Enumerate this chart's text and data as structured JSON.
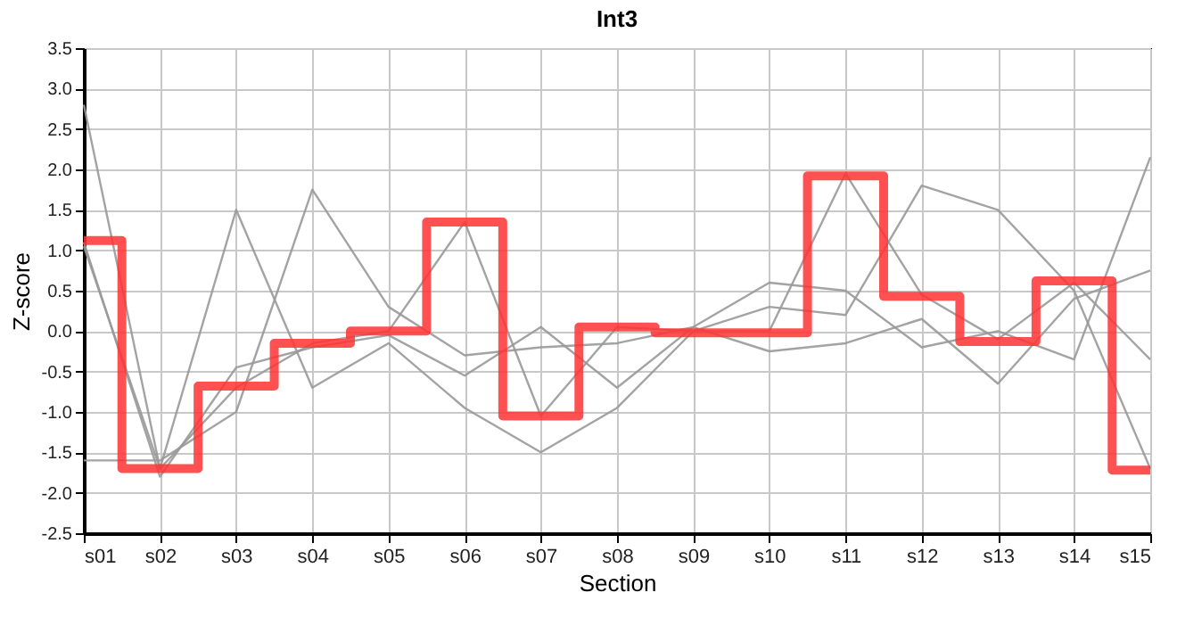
{
  "chart_data": {
    "type": "line",
    "title": "Int3",
    "xlabel": "Section",
    "ylabel": "Z-score",
    "categories": [
      "s01",
      "s02",
      "s03",
      "s04",
      "s05",
      "s06",
      "s07",
      "s08",
      "s09",
      "s10",
      "s11",
      "s12",
      "s13",
      "s14",
      "s15"
    ],
    "series": [
      {
        "type": "line",
        "color": "#999999",
        "values": [
          2.8,
          -1.7,
          1.5,
          -0.7,
          -0.15,
          -0.95,
          -1.5,
          -0.95,
          0.0,
          0.3,
          0.2,
          1.8,
          1.5,
          0.5,
          -1.7
        ]
      },
      {
        "type": "line",
        "color": "#999999",
        "values": [
          -1.6,
          -1.6,
          -1.0,
          1.75,
          0.3,
          -0.3,
          -0.2,
          -0.15,
          0.05,
          0.6,
          0.5,
          -0.2,
          0.0,
          -0.35,
          2.15
        ]
      },
      {
        "type": "line",
        "color": "#999999",
        "values": [
          1.1,
          -1.8,
          -0.45,
          -0.2,
          -0.05,
          -0.55,
          0.05,
          -0.7,
          0.05,
          -0.25,
          -0.15,
          0.15,
          -0.65,
          0.4,
          0.75
        ]
      },
      {
        "type": "line",
        "color": "#999999",
        "values": [
          1.05,
          -1.7,
          -0.7,
          -0.15,
          0.0,
          1.35,
          -1.05,
          0.05,
          0.0,
          0.0,
          1.95,
          0.45,
          -0.1,
          0.6,
          -0.35
        ]
      },
      {
        "type": "step",
        "color": "#ff3333",
        "values": [
          1.12,
          -1.7,
          -0.68,
          -0.15,
          0.0,
          1.35,
          -1.05,
          0.05,
          -0.02,
          -0.02,
          1.92,
          0.43,
          -0.13,
          0.62,
          -1.72
        ]
      }
    ],
    "ylim": [
      -2.5,
      3.5
    ],
    "yticks": [
      {
        "value": -2.5,
        "label": "-2.5"
      },
      {
        "value": -2,
        "label": "-2.0"
      },
      {
        "value": -1.5,
        "label": "-1.5"
      },
      {
        "value": -1,
        "label": "-1.0"
      },
      {
        "value": -0.5,
        "label": "-0.5"
      },
      {
        "value": 0,
        "label": "0.0"
      },
      {
        "value": 0.5,
        "label": "0.5"
      },
      {
        "value": 1,
        "label": "1.0"
      },
      {
        "value": 1.5,
        "label": "1.5"
      },
      {
        "value": 2,
        "label": "2.0"
      },
      {
        "value": 2.5,
        "label": "2.5"
      },
      {
        "value": 3,
        "label": "3.0"
      },
      {
        "value": 3.5,
        "label": "3.5"
      }
    ],
    "grid": true
  }
}
